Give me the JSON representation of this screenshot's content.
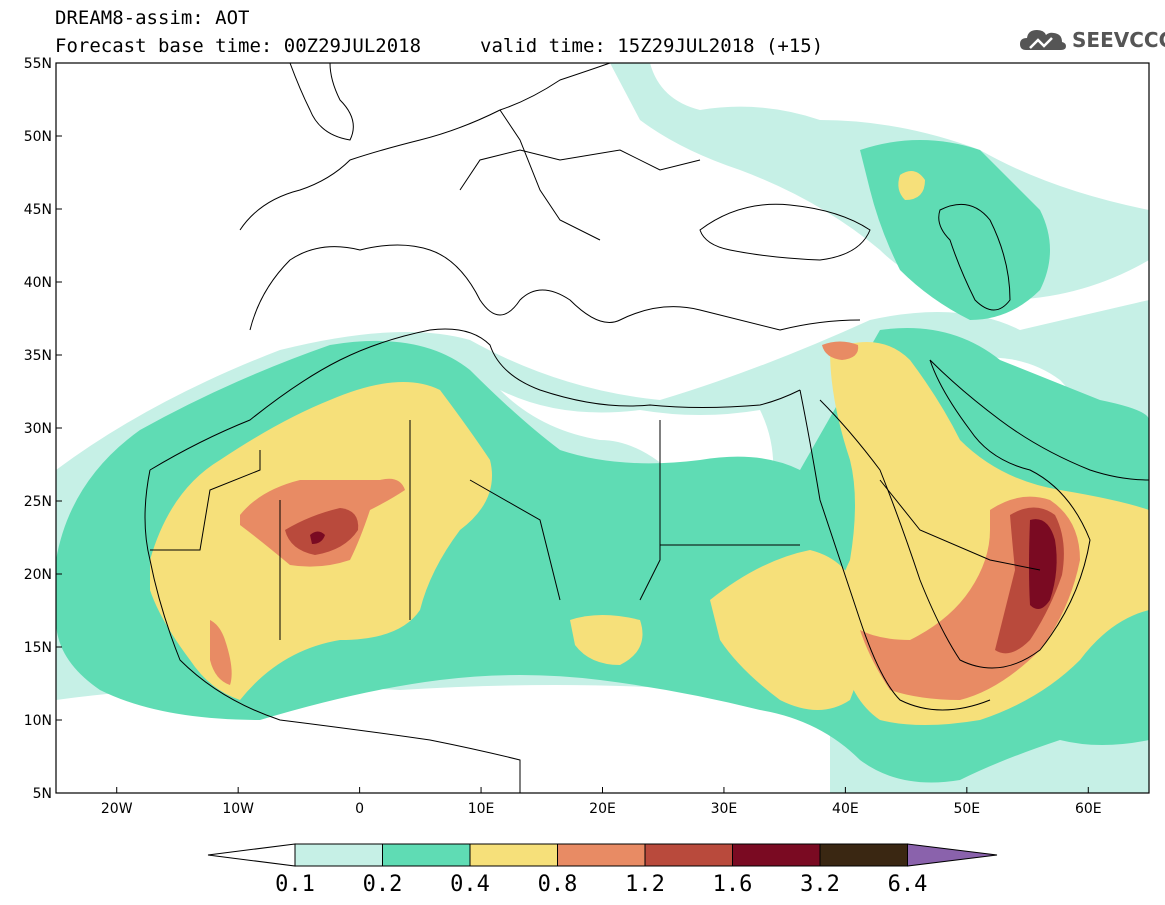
{
  "header": {
    "line1": "DREAM8-assim: AOT",
    "line2": "Forecast base time: 00Z29JUL2018",
    "valid": "valid time: 15Z29JUL2018 (+15)",
    "logo_text": "SEEVCCC",
    "logo_icon": "cloud-icon"
  },
  "axes": {
    "lat_labels": [
      "55N",
      "50N",
      "45N",
      "40N",
      "35N",
      "30N",
      "25N",
      "20N",
      "15N",
      "10N",
      "5N"
    ],
    "lon_labels": [
      "20W",
      "10W",
      "0",
      "10E",
      "20E",
      "30E",
      "40E",
      "50E",
      "60E"
    ],
    "lat_range": [
      5,
      55
    ],
    "lon_range": [
      -25,
      65
    ]
  },
  "colorbar": {
    "labels": [
      "0.1",
      "0.2",
      "0.4",
      "0.8",
      "1.2",
      "1.6",
      "3.2",
      "6.4"
    ],
    "colors": [
      "#ffffff",
      "#c6f0e6",
      "#5fdcb4",
      "#f6e07a",
      "#e88b64",
      "#b94a3c",
      "#7a0a22",
      "#3a2712",
      "#8a62ac"
    ]
  },
  "colors": {
    "level_01": "#c6f0e6",
    "level_02": "#5fdcb4",
    "level_04": "#f6e07a",
    "level_08": "#e88b64",
    "level_12": "#b94a3c",
    "level_16": "#7a0a22",
    "border": "#000000"
  }
}
